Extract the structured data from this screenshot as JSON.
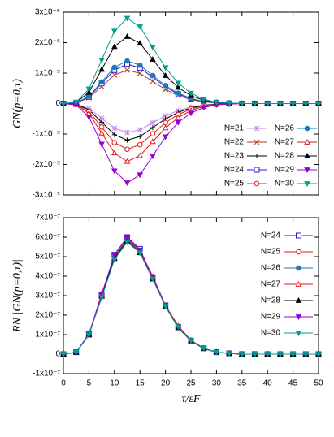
{
  "chart_data": [
    {
      "type": "line",
      "ylabel": "GN(p=0,τ)",
      "x": [
        0,
        2.5,
        5,
        7.5,
        10,
        12.5,
        15,
        17.5,
        20,
        22.5,
        25,
        27.5,
        30,
        32.5,
        35,
        37.5,
        40,
        42.5,
        45,
        47.5,
        50
      ],
      "xlim": [
        0,
        50
      ],
      "xticks": [
        0,
        5,
        10,
        15,
        20,
        25,
        30,
        35,
        40,
        45,
        50
      ],
      "ylim": [
        -3e-05,
        3e-05
      ],
      "yticks": [
        {
          "value": 3e-05,
          "label": "3x10⁻⁵"
        },
        {
          "value": 2e-05,
          "label": "2x10⁻⁵"
        },
        {
          "value": 1e-05,
          "label": "1x10⁻⁵"
        },
        0,
        {
          "value": -1e-05,
          "label": "-1x10⁻⁵"
        },
        {
          "value": -2e-05,
          "label": "-2x10⁻⁵"
        },
        {
          "value": -3e-05,
          "label": "-3x10⁻⁵"
        }
      ],
      "legend": "lower right",
      "series": [
        {
          "name": "N=21",
          "color": "#c58cf0",
          "marker": "star",
          "values": [
            0,
            -1.6e-07,
            -1.6e-06,
            -4.8e-06,
            -8.1e-06,
            -9.5e-06,
            -8.6e-06,
            -6.3e-06,
            -4e-06,
            -2.3e-06,
            -1.1e-06,
            -4.8e-07,
            -1.6e-07,
            -7e-08,
            0,
            0,
            0,
            0,
            0,
            0,
            0
          ]
        },
        {
          "name": "N=22",
          "color": "#b5362c",
          "marker": "cross",
          "values": [
            0,
            1.9e-07,
            1.9e-06,
            5.6e-06,
            9.4e-06,
            1.1e-05,
            9.9e-06,
            7.3e-06,
            4.6e-06,
            2.6e-06,
            1.3e-06,
            5.5e-07,
            1.9e-07,
            8e-08,
            0,
            0,
            0,
            0,
            0,
            0,
            0
          ]
        },
        {
          "name": "N=23",
          "color": "#000000",
          "marker": "plus",
          "values": [
            0,
            -2e-07,
            -2e-06,
            -6.1e-06,
            -1.02e-05,
            -1.2e-05,
            -1.08e-05,
            -7.9e-06,
            -5e-06,
            -2.9e-06,
            -1.4e-06,
            -6e-07,
            -2e-07,
            -8e-08,
            0,
            0,
            0,
            0,
            0,
            0,
            0
          ]
        },
        {
          "name": "N=24",
          "color": "#2020d0",
          "marker": "square",
          "values": [
            0,
            2.2e-07,
            2.2e-06,
            6.6e-06,
            1.1e-05,
            1.3e-05,
            1.17e-05,
            8.6e-06,
            5.5e-06,
            3.1e-06,
            1.6e-06,
            6.5e-07,
            2.2e-07,
            9e-08,
            0,
            0,
            0,
            0,
            0,
            0,
            0
          ]
        },
        {
          "name": "N=25",
          "color": "#e0201b",
          "marker": "circle",
          "values": [
            0,
            -2.6e-07,
            -2.6e-06,
            -7.7e-06,
            -1.28e-05,
            -1.5e-05,
            -1.35e-05,
            -9.9e-06,
            -6.3e-06,
            -3.6e-06,
            -1.8e-06,
            -7.5e-07,
            -2.6e-07,
            -1.1e-07,
            0,
            0,
            0,
            0,
            0,
            0,
            0
          ]
        },
        {
          "name": "N=26",
          "color": "#1f78b4",
          "marker": "circle-filled",
          "values": [
            0,
            2.4e-07,
            2.4e-06,
            7.1e-06,
            1.19e-05,
            1.4e-05,
            1.26e-05,
            9.2e-06,
            5.9e-06,
            3.4e-06,
            1.7e-06,
            7e-07,
            2.4e-07,
            1e-07,
            0,
            0,
            0,
            0,
            0,
            0,
            0
          ]
        },
        {
          "name": "N=27",
          "color": "#e41a1c",
          "marker": "triangle",
          "values": [
            0,
            -3.2e-07,
            -3.2e-06,
            -9.7e-06,
            -1.62e-05,
            -1.9e-05,
            -1.71e-05,
            -1.25e-05,
            -8e-06,
            -4.6e-06,
            -2.3e-06,
            -9.5e-07,
            -3.2e-07,
            -1.3e-07,
            0,
            0,
            0,
            0,
            0,
            0,
            0
          ]
        },
        {
          "name": "N=28",
          "color": "#000000",
          "marker": "triangle-filled",
          "values": [
            0,
            3.7e-07,
            3.7e-06,
            1.12e-05,
            1.87e-05,
            2.2e-05,
            1.98e-05,
            1.45e-05,
            9.2e-06,
            5.3e-06,
            2.6e-06,
            1.1e-06,
            3.7e-07,
            1.5e-07,
            0,
            0,
            0,
            0,
            0,
            0,
            0
          ]
        },
        {
          "name": "N=29",
          "color": "#9400d3",
          "marker": "itriangle-filled",
          "values": [
            0,
            -4.4e-07,
            -4.4e-06,
            -1.33e-05,
            -2.21e-05,
            -2.6e-05,
            -2.34e-05,
            -1.72e-05,
            -1.09e-05,
            -6.2e-06,
            -3.1e-06,
            -1.3e-06,
            -4.4e-07,
            -1.8e-07,
            0,
            0,
            0,
            0,
            0,
            0,
            0
          ]
        },
        {
          "name": "N=30",
          "color": "#009e8c",
          "marker": "itriangle-filled",
          "values": [
            0,
            4.8e-07,
            4.8e-06,
            1.43e-05,
            2.38e-05,
            2.8e-05,
            2.52e-05,
            1.85e-05,
            1.18e-05,
            6.7e-06,
            3.4e-06,
            1.4e-06,
            4.8e-07,
            2e-07,
            0,
            0,
            0,
            0,
            0,
            0,
            0
          ]
        }
      ]
    },
    {
      "type": "line",
      "ylabel": "RN |GN(p=0,τ)|",
      "xlabel": "τ/εF",
      "x": [
        0,
        2.5,
        5,
        7.5,
        10,
        12.5,
        15,
        17.5,
        20,
        22.5,
        25,
        27.5,
        30,
        32.5,
        35,
        37.5,
        40,
        42.5,
        45,
        47.5,
        50
      ],
      "xlim": [
        0,
        50
      ],
      "xticks": [
        0,
        5,
        10,
        15,
        20,
        25,
        30,
        35,
        40,
        45,
        50
      ],
      "ylim": [
        -1e-07,
        7e-07
      ],
      "yticks": [
        {
          "value": 7e-07,
          "label": "7x10⁻⁷"
        },
        {
          "value": 6e-07,
          "label": "6x10⁻⁷"
        },
        {
          "value": 5e-07,
          "label": "5x10⁻⁷"
        },
        {
          "value": 4e-07,
          "label": "4x10⁻⁷"
        },
        {
          "value": 3e-07,
          "label": "3x10⁻⁷"
        },
        {
          "value": 2e-07,
          "label": "2x10⁻⁷"
        },
        {
          "value": 1e-07,
          "label": "1x10⁻⁷"
        },
        0,
        {
          "value": -1e-07,
          "label": "-1x10⁻⁷"
        }
      ],
      "legend": "upper right",
      "series": [
        {
          "name": "N=24",
          "color": "#2020d0",
          "marker": "square",
          "values": [
            0,
            1e-08,
            1e-07,
            3e-07,
            5.1e-07,
            6e-07,
            5.4e-07,
            3.9e-07,
            2.5e-07,
            1.4e-07,
            7e-08,
            3e-08,
            1e-08,
            4e-09,
            0,
            0,
            0,
            0,
            0,
            0,
            0
          ]
        },
        {
          "name": "N=25",
          "color": "#e0201b",
          "marker": "circle",
          "values": [
            0,
            1e-08,
            1e-07,
            3.1e-07,
            5e-07,
            5.95e-07,
            5.3e-07,
            4e-07,
            2.5e-07,
            1.4e-07,
            7e-08,
            3e-08,
            1e-08,
            4e-09,
            0,
            0,
            0,
            0,
            0,
            0,
            0
          ]
        },
        {
          "name": "N=26",
          "color": "#1f78b4",
          "marker": "circle-filled",
          "values": [
            0,
            1e-08,
            9.8e-08,
            3e-07,
            5e-07,
            5.9e-07,
            5.3e-07,
            3.9e-07,
            2.5e-07,
            1.4e-07,
            7e-08,
            3e-08,
            1e-08,
            4e-09,
            0,
            0,
            0,
            0,
            0,
            0,
            0
          ]
        },
        {
          "name": "N=27",
          "color": "#e41a1c",
          "marker": "triangle",
          "values": [
            0,
            1e-08,
            1e-07,
            2.95e-07,
            4.95e-07,
            5.85e-07,
            5.25e-07,
            3.9e-07,
            2.5e-07,
            1.45e-07,
            7.2e-08,
            3e-08,
            1e-08,
            4e-09,
            0,
            0,
            0,
            0,
            0,
            0,
            0
          ]
        },
        {
          "name": "N=28",
          "color": "#000000",
          "marker": "triangle-filled",
          "values": [
            0,
            1e-08,
            1e-07,
            3e-07,
            4.9e-07,
            5.8e-07,
            5.2e-07,
            3.85e-07,
            2.45e-07,
            1.35e-07,
            6.8e-08,
            2.8e-08,
            1e-08,
            3e-09,
            0,
            0,
            0,
            0,
            0,
            0,
            0
          ]
        },
        {
          "name": "N=29",
          "color": "#9400d3",
          "marker": "itriangle-filled",
          "values": [
            0,
            1e-08,
            1.05e-07,
            3.05e-07,
            5.1e-07,
            6e-07,
            5.35e-07,
            3.95e-07,
            2.5e-07,
            1.4e-07,
            7e-08,
            3e-08,
            1e-08,
            4e-09,
            0,
            0,
            0,
            0,
            0,
            0,
            0
          ]
        },
        {
          "name": "N=30",
          "color": "#009e8c",
          "marker": "itriangle-filled",
          "values": [
            0,
            1e-08,
            1e-07,
            2.9e-07,
            4.85e-07,
            5.75e-07,
            5.2e-07,
            3.85e-07,
            2.45e-07,
            1.4e-07,
            7e-08,
            3e-08,
            1e-08,
            4e-09,
            0,
            0,
            0,
            0,
            0,
            0,
            0
          ]
        }
      ]
    }
  ]
}
